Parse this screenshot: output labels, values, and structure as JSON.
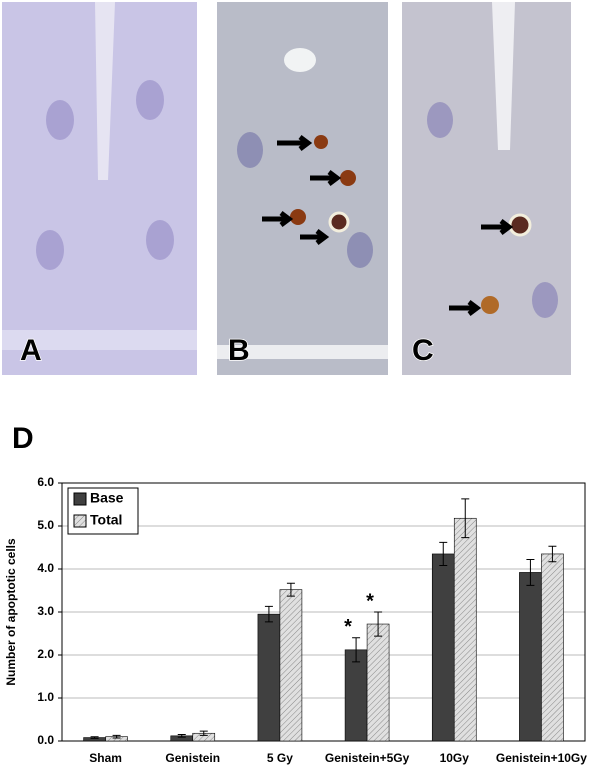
{
  "panels": [
    {
      "label": "A"
    },
    {
      "label": "B"
    },
    {
      "label": "C"
    }
  ],
  "chart_label": "D",
  "chart_data": {
    "type": "bar",
    "y_label": "Number of apoptotic cells",
    "categories": [
      "Sham",
      "Genistein",
      "5 Gy",
      "Genistein+5Gy",
      "10Gy",
      "Genistein+10Gy"
    ],
    "series": [
      {
        "name": "Base",
        "color": "#404040",
        "values": [
          0.08,
          0.12,
          2.95,
          2.12,
          4.35,
          3.92
        ],
        "errors": [
          0.02,
          0.03,
          0.18,
          0.28,
          0.27,
          0.3
        ]
      },
      {
        "name": "Total",
        "color": "#e0e0e0",
        "hatch": true,
        "values": [
          0.1,
          0.18,
          3.52,
          2.72,
          5.18,
          4.35
        ],
        "errors": [
          0.03,
          0.05,
          0.15,
          0.28,
          0.45,
          0.18
        ]
      }
    ],
    "annotations": [
      {
        "category": "Genistein+5Gy",
        "series": "Base",
        "text": "*"
      },
      {
        "category": "Genistein+5Gy",
        "series": "Total",
        "text": "*"
      }
    ],
    "ylim": [
      0,
      6
    ],
    "yticks": [
      {
        "value": 0,
        "label": "0.0"
      },
      {
        "value": 1,
        "label": "1.0"
      },
      {
        "value": 2,
        "label": "2.0"
      },
      {
        "value": 3,
        "label": "3.0"
      },
      {
        "value": 4,
        "label": "4.0"
      },
      {
        "value": 5,
        "label": "5.0"
      },
      {
        "value": 6,
        "label": "6.0"
      }
    ],
    "grid": true,
    "legend": "top-left"
  }
}
